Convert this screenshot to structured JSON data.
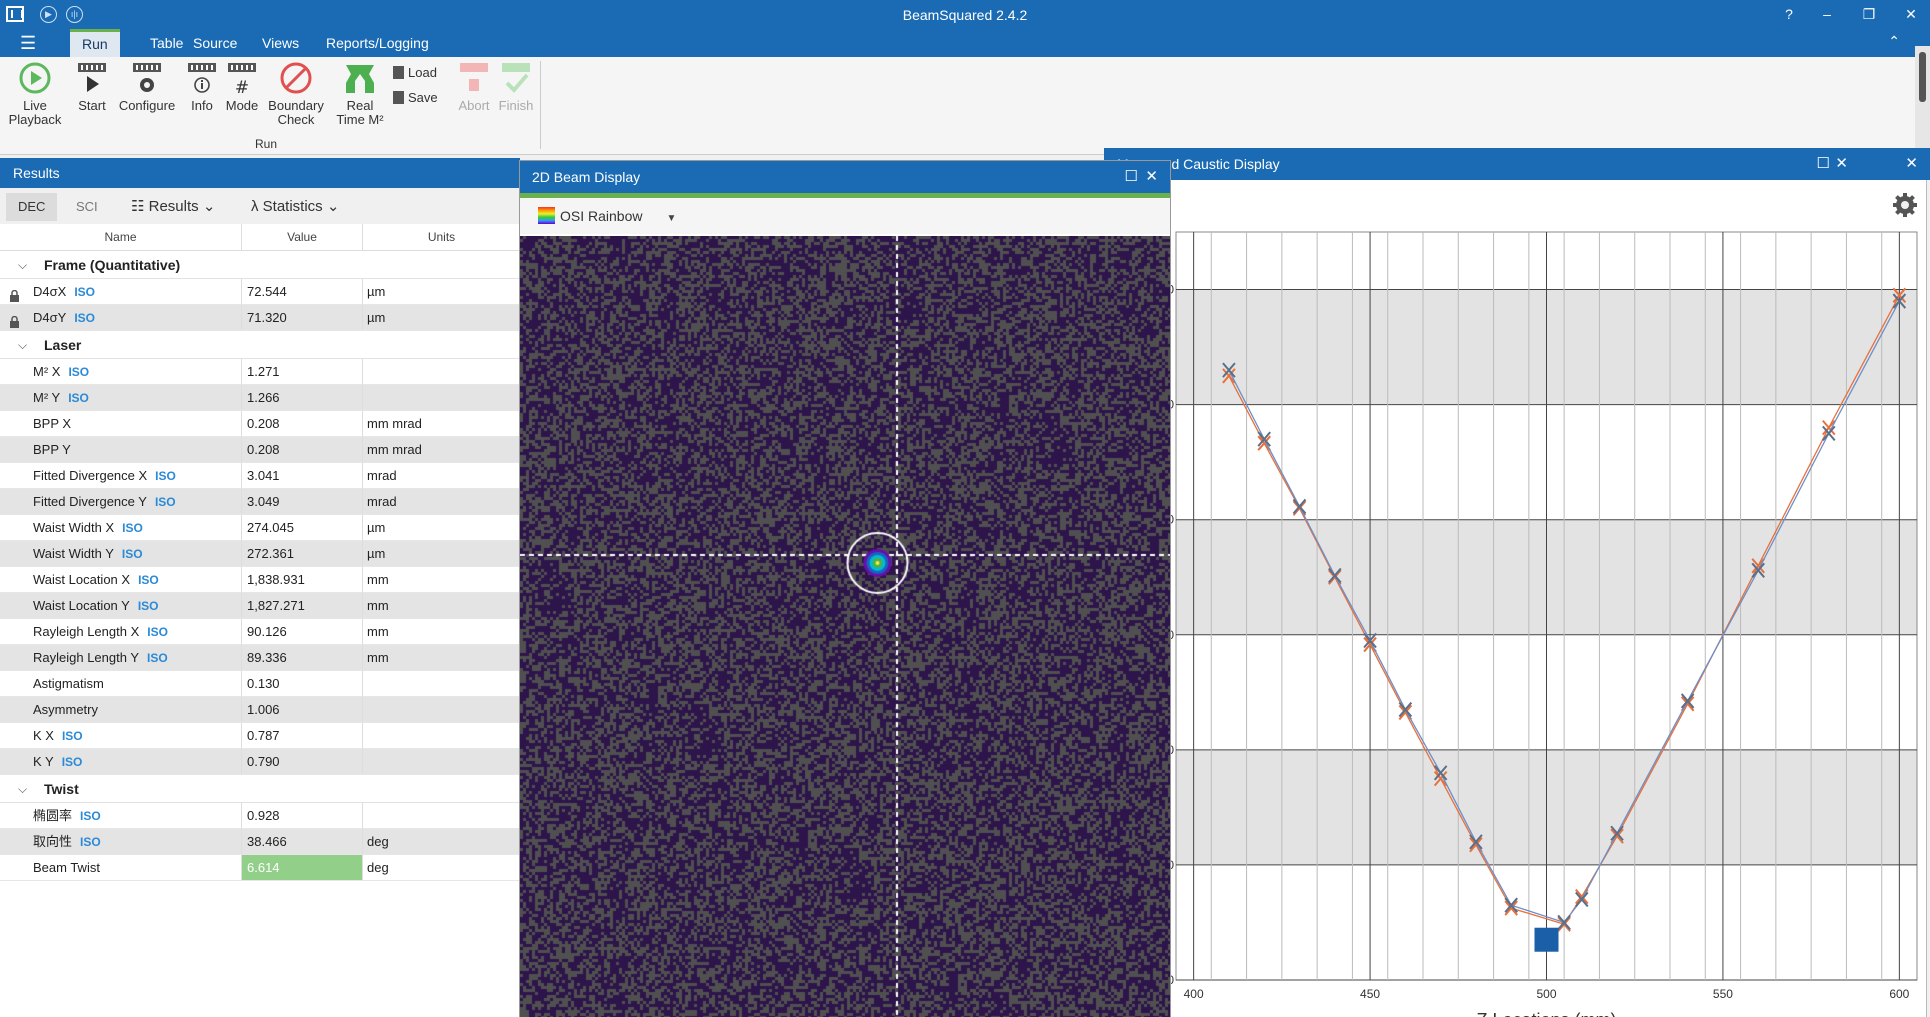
{
  "app": {
    "title": "BeamSquared 2.4.2"
  },
  "window_controls": {
    "help": "?",
    "minimize": "–",
    "restore": "❐",
    "close": "✕"
  },
  "ribbon": {
    "tabs": [
      "Run",
      "Table",
      "Source",
      "Views",
      "Reports/Logging"
    ],
    "active_tab": "Run",
    "buttons": {
      "live_playback": "Live\nPlayback",
      "start": "Start",
      "configure": "Configure",
      "info": "Info",
      "mode": "Mode",
      "boundary_check": "Boundary\nCheck",
      "real_time_m2": "Real\nTime M²",
      "load": "Load",
      "save": "Save",
      "abort": "Abort",
      "finish": "Finish"
    },
    "group_label": "Run"
  },
  "results": {
    "title": "Results",
    "format_dec": "DEC",
    "format_sci": "SCI",
    "results_menu": "Results",
    "statistics_menu": "Statistics",
    "columns": {
      "name": "Name",
      "value": "Value",
      "units": "Units"
    },
    "groups": [
      {
        "title": "Frame (Quantitative)",
        "rows": [
          {
            "name": "D4σX",
            "iso": "ISO",
            "value": "72.544",
            "unit": "µm",
            "locked": true
          },
          {
            "name": "D4σY",
            "iso": "ISO",
            "value": "71.320",
            "unit": "µm",
            "locked": true
          }
        ]
      },
      {
        "title": "Laser",
        "rows": [
          {
            "name": "M² X",
            "iso": "ISO",
            "value": "1.271",
            "unit": ""
          },
          {
            "name": "M² Y",
            "iso": "ISO",
            "value": "1.266",
            "unit": ""
          },
          {
            "name": "BPP X",
            "iso": "",
            "value": "0.208",
            "unit": "mm mrad"
          },
          {
            "name": "BPP Y",
            "iso": "",
            "value": "0.208",
            "unit": "mm mrad"
          },
          {
            "name": "Fitted Divergence X",
            "iso": "ISO",
            "value": "3.041",
            "unit": "mrad"
          },
          {
            "name": "Fitted Divergence Y",
            "iso": "ISO",
            "value": "3.049",
            "unit": "mrad"
          },
          {
            "name": "Waist Width X",
            "iso": "ISO",
            "value": "274.045",
            "unit": "µm"
          },
          {
            "name": "Waist Width Y",
            "iso": "ISO",
            "value": "272.361",
            "unit": "µm"
          },
          {
            "name": "Waist Location X",
            "iso": "ISO",
            "value": "1,838.931",
            "unit": "mm"
          },
          {
            "name": "Waist Location Y",
            "iso": "ISO",
            "value": "1,827.271",
            "unit": "mm"
          },
          {
            "name": "Rayleigh Length X",
            "iso": "ISO",
            "value": "90.126",
            "unit": "mm"
          },
          {
            "name": "Rayleigh Length Y",
            "iso": "ISO",
            "value": "89.336",
            "unit": "mm"
          },
          {
            "name": "Astigmatism",
            "iso": "",
            "value": "0.130",
            "unit": ""
          },
          {
            "name": "Asymmetry",
            "iso": "",
            "value": "1.006",
            "unit": ""
          },
          {
            "name": "K X",
            "iso": "ISO",
            "value": "0.787",
            "unit": ""
          },
          {
            "name": "K Y",
            "iso": "ISO",
            "value": "0.790",
            "unit": ""
          }
        ]
      },
      {
        "title": "Twist",
        "rows": [
          {
            "name": "椭圆率",
            "iso": "ISO",
            "value": "0.928",
            "unit": ""
          },
          {
            "name": "取向性",
            "iso": "ISO",
            "value": "38.466",
            "unit": "deg"
          },
          {
            "name": "Beam Twist",
            "iso": "",
            "value": "6.614",
            "unit": "deg",
            "highlight": true
          }
        ]
      }
    ]
  },
  "beam_display": {
    "title": "2D Beam Display",
    "palette": "OSI Rainbow",
    "crosshair_x": 0.58,
    "crosshair_y": 0.408,
    "beam_x": 0.55,
    "beam_y": 0.418
  },
  "caustic": {
    "title": "Measured Caustic Display"
  },
  "chart_data": {
    "type": "scatter",
    "title": "",
    "xlabel": "Z Locations (mm)",
    "ylabel": "",
    "xlim": [
      395,
      605
    ],
    "ylim": [
      0,
      1300
    ],
    "x_ticks": [
      400,
      450,
      500,
      550,
      600
    ],
    "y_ticks": [
      0,
      200,
      400,
      600,
      800,
      1000,
      1200
    ],
    "y_tick_labels": [
      "0",
      "200",
      "400",
      "600",
      "800",
      "1000",
      "1200"
    ],
    "grid": true,
    "series": [
      {
        "name": "",
        "color": "#e8703a",
        "points": [
          [
            410,
            1050
          ],
          [
            420,
            933
          ],
          [
            430,
            820
          ],
          [
            440,
            700
          ],
          [
            450,
            583
          ],
          [
            460,
            465
          ],
          [
            470,
            350
          ],
          [
            480,
            235
          ],
          [
            490,
            125
          ],
          [
            505,
            97
          ],
          [
            510,
            145
          ],
          [
            520,
            250
          ],
          [
            540,
            480
          ],
          [
            560,
            720
          ],
          [
            580,
            960
          ],
          [
            600,
            1190
          ]
        ]
      },
      {
        "name": "",
        "color": "#5a6f8a",
        "points": [
          [
            410,
            1060
          ],
          [
            420,
            940
          ],
          [
            430,
            823
          ],
          [
            440,
            703
          ],
          [
            450,
            590
          ],
          [
            460,
            470
          ],
          [
            470,
            360
          ],
          [
            480,
            240
          ],
          [
            490,
            130
          ],
          [
            505,
            100
          ],
          [
            510,
            140
          ],
          [
            520,
            255
          ],
          [
            540,
            485
          ],
          [
            560,
            712
          ],
          [
            580,
            950
          ],
          [
            600,
            1180
          ]
        ]
      }
    ],
    "waist_marker": {
      "x": 500,
      "y": 70
    }
  }
}
